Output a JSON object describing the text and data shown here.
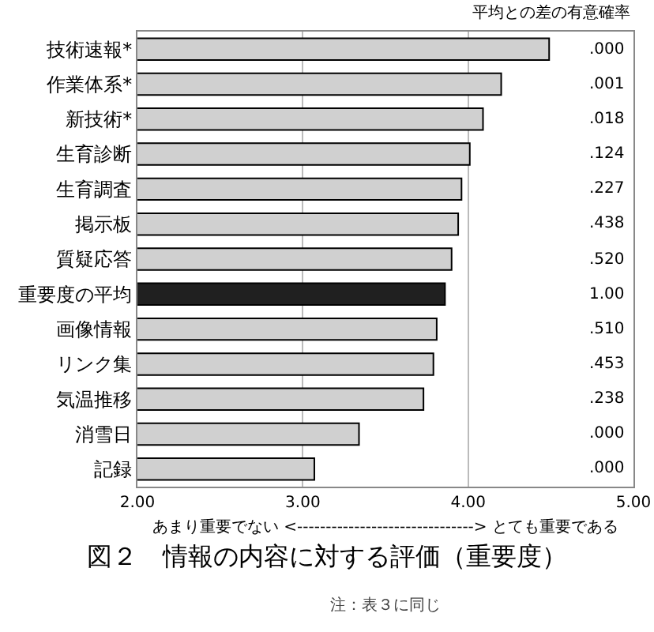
{
  "chart_data": {
    "type": "bar",
    "orientation": "horizontal",
    "title": "図２　情報の内容に対する評価（重要度）",
    "xlabel": "あまり重要でない <-------------------------------> とても重要である",
    "categories": [
      "技術速報*",
      "作業体系*",
      "新技術*",
      "生育診断",
      "生育調査",
      "掲示板",
      "質疑応答",
      "重要度の平均",
      "画像情報",
      "リンク集",
      "気温推移",
      "消雪日",
      "記録"
    ],
    "values": [
      4.49,
      4.2,
      4.09,
      4.01,
      3.96,
      3.94,
      3.9,
      3.86,
      3.81,
      3.79,
      3.73,
      3.34,
      3.07
    ],
    "colors": [
      "#d0d0d0",
      "#d0d0d0",
      "#d0d0d0",
      "#d0d0d0",
      "#d0d0d0",
      "#d0d0d0",
      "#d0d0d0",
      "#202020",
      "#d0d0d0",
      "#d0d0d0",
      "#d0d0d0",
      "#d0d0d0",
      "#d0d0d0"
    ],
    "xlim": [
      2,
      5
    ],
    "xticks": [
      {
        "value": 2,
        "label": "2.00"
      },
      {
        "value": 3,
        "label": "3.00"
      },
      {
        "value": 4,
        "label": "4.00"
      },
      {
        "value": 5,
        "label": "5.00"
      }
    ],
    "grid": "x",
    "annotations": [
      "平均との差の有意確率",
      ".000",
      ".001",
      ".018",
      ".124",
      ".227",
      ".438",
      ".520",
      "1.00",
      ".510",
      ".453",
      ".238",
      ".000",
      ".000",
      "注：表３に同じ"
    ]
  }
}
